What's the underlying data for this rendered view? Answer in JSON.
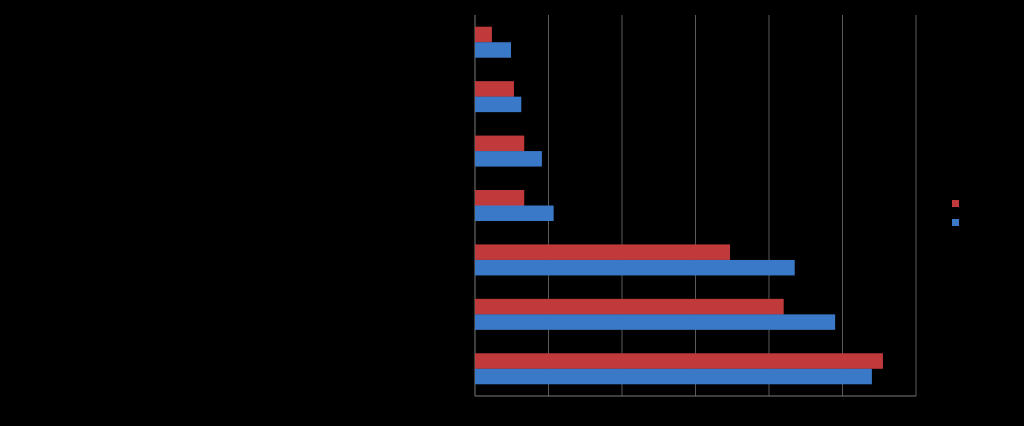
{
  "chart_data": {
    "type": "barh",
    "categories": [
      null,
      null,
      null,
      null,
      null,
      null,
      null
    ],
    "series": [
      {
        "color": "#c0393b",
        "values": [
          0.23,
          0.53,
          0.67,
          0.67,
          3.47,
          4.2,
          5.55
        ]
      },
      {
        "color": "#3a78c8",
        "values": [
          0.49,
          0.63,
          0.91,
          1.07,
          4.35,
          4.9,
          5.4
        ]
      }
    ],
    "xlim": [
      0,
      6
    ],
    "xticks": [
      0,
      1,
      2,
      3,
      4,
      5,
      6
    ],
    "grid": true
  }
}
